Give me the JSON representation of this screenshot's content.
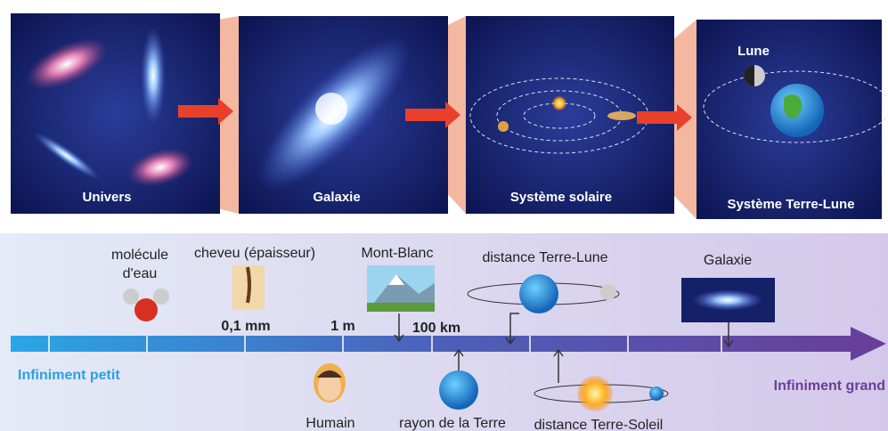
{
  "panels": [
    {
      "label": "Univers"
    },
    {
      "label": "Galaxie"
    },
    {
      "label": "Système solaire"
    },
    {
      "label": "Système Terre-Lune",
      "moon_label": "Lune"
    }
  ],
  "scale": {
    "above": [
      {
        "label": [
          "molécule",
          "d'eau"
        ]
      },
      {
        "label": [
          "cheveu (épaisseur)"
        ]
      },
      {
        "label": [
          "Mont-Blanc"
        ]
      },
      {
        "label": [
          "distance Terre-Lune"
        ]
      },
      {
        "label": [
          "Galaxie"
        ]
      }
    ],
    "ticks": [
      "0,1 mm",
      "1 m",
      "100 km"
    ],
    "below": [
      "Humain",
      "rayon de la Terre",
      "distance Terre-Soleil"
    ],
    "left": "Infiniment petit",
    "right": "Infiniment grand"
  }
}
